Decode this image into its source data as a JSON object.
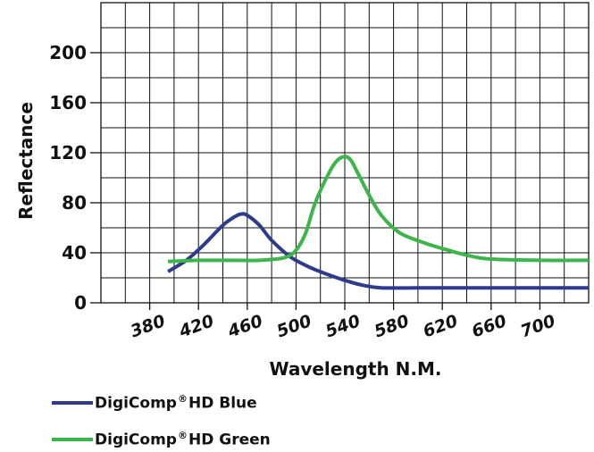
{
  "chart_data": {
    "type": "line",
    "title": "",
    "xlabel": "Wavelength N.M.",
    "ylabel": "Reflectance",
    "x_ticks": [
      "380",
      "420",
      "460",
      "500",
      "540",
      "580",
      "620",
      "660",
      "700"
    ],
    "y_ticks": [
      "0",
      "40",
      "80",
      "120",
      "160",
      "200"
    ],
    "xlim": [
      340,
      740
    ],
    "ylim": [
      0,
      240
    ],
    "grid": true,
    "legend_position": "bottom",
    "series": [
      {
        "name": "DigiComp®HD Blue",
        "legend_prefix": "DigiComp",
        "legend_suffix": "HD Blue",
        "color": "#2e3a8c",
        "x": [
          395,
          410,
          425,
          440,
          450,
          455,
          460,
          470,
          480,
          495,
          510,
          525,
          540,
          555,
          570,
          600,
          650,
          700,
          740
        ],
        "y": [
          25,
          34,
          47,
          62,
          69,
          71,
          70,
          62,
          50,
          37,
          29,
          23,
          18,
          14,
          12,
          12,
          12,
          12,
          12
        ]
      },
      {
        "name": "DigiComp®HD Green",
        "legend_prefix": "DigiComp",
        "legend_suffix": "HD Green",
        "color": "#3cb54a",
        "x": [
          395,
          420,
          450,
          470,
          490,
          500,
          508,
          515,
          525,
          533,
          540,
          545,
          550,
          560,
          570,
          585,
          605,
          625,
          645,
          660,
          700,
          740
        ],
        "y": [
          33,
          34,
          34,
          34,
          36,
          42,
          56,
          78,
          100,
          113,
          117,
          114,
          105,
          86,
          70,
          56,
          48,
          42,
          37,
          35,
          34,
          34
        ]
      }
    ]
  }
}
